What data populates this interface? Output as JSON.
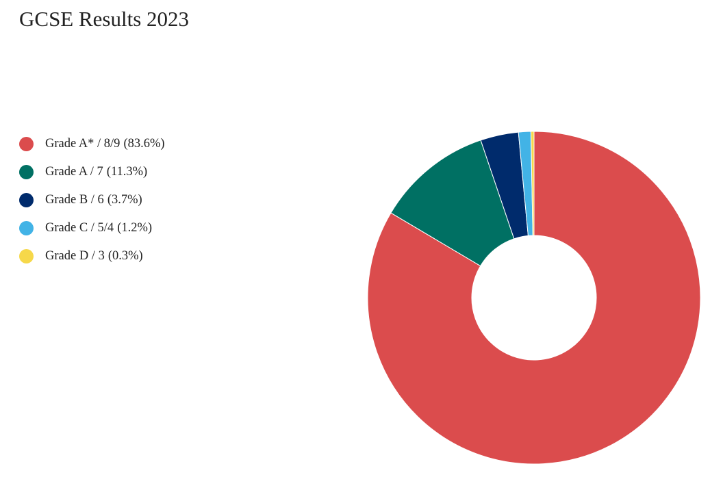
{
  "chart_data": {
    "type": "pie",
    "variant": "donut",
    "title": "GCSE Results 2023",
    "legend_position": "left",
    "start_angle_deg": 0,
    "direction": "clockwise",
    "slices": [
      {
        "label": "Grade A* / 8/9",
        "value_text": "(83.6%)",
        "value": 83.6,
        "color": "#db4c4d"
      },
      {
        "label": "Grade A / 7",
        "value_text": "(11.3%)",
        "value": 11.3,
        "color": "#007063"
      },
      {
        "label": "Grade B / 6",
        "value_text": "(3.7%)",
        "value": 3.7,
        "color": "#002b6c"
      },
      {
        "label": "Grade C / 5/4",
        "value_text": "(1.2%)",
        "value": 1.2,
        "color": "#42b3e6"
      },
      {
        "label": "Grade D / 3",
        "value_text": "(0.3%)",
        "value": 0.3,
        "color": "#f6d84a"
      }
    ]
  }
}
